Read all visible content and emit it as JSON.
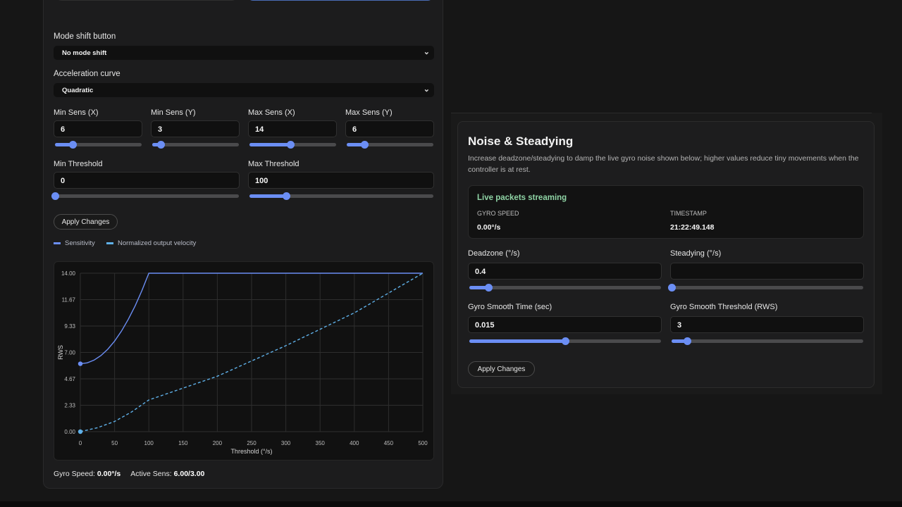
{
  "left_panel": {
    "mode_shift": {
      "label": "Mode shift button",
      "value": "No mode shift"
    },
    "accel_curve": {
      "label": "Acceleration curve",
      "value": "Quadratic"
    },
    "sens": [
      {
        "label": "Min Sens (X)",
        "value": "6"
      },
      {
        "label": "Min Sens (Y)",
        "value": "3"
      },
      {
        "label": "Max Sens (X)",
        "value": "14"
      },
      {
        "label": "Max Sens (Y)",
        "value": "6"
      }
    ],
    "thresholds": [
      {
        "label": "Min Threshold",
        "value": "0"
      },
      {
        "label": "Max Threshold",
        "value": "100"
      }
    ],
    "apply_label": "Apply Changes",
    "legend": [
      "Sensitivity",
      "Normalized output velocity"
    ],
    "status": {
      "gyro_label": "Gyro Speed:",
      "gyro_value": "0.00°/s",
      "sens_label": "Active Sens:",
      "sens_value": "6.00/3.00"
    }
  },
  "chart_data": {
    "type": "line",
    "xlabel": "Threshold (°/s)",
    "ylabel": "RWS",
    "xlim": [
      0,
      500
    ],
    "ylim": [
      0,
      14
    ],
    "x_ticks": [
      "0",
      "50",
      "100",
      "150",
      "200",
      "250",
      "300",
      "350",
      "400",
      "450",
      "500"
    ],
    "y_ticks": [
      "0.00",
      "2.33",
      "4.67",
      "7.00",
      "9.33",
      "11.67",
      "14.00"
    ],
    "grid": true,
    "legend_position": "top-left",
    "series": [
      {
        "name": "Sensitivity",
        "color": "#6b8ef4",
        "style": "solid",
        "points": [
          [
            0,
            6
          ],
          [
            10,
            6.08
          ],
          [
            20,
            6.32
          ],
          [
            30,
            6.72
          ],
          [
            40,
            7.28
          ],
          [
            50,
            8
          ],
          [
            60,
            8.88
          ],
          [
            70,
            9.92
          ],
          [
            80,
            11.12
          ],
          [
            90,
            12.48
          ],
          [
            100,
            14
          ],
          [
            500,
            14
          ]
        ]
      },
      {
        "name": "Normalized output velocity",
        "color": "#5fb0e8",
        "style": "dashed",
        "points": [
          [
            0,
            0
          ],
          [
            25,
            0.35
          ],
          [
            50,
            0.9
          ],
          [
            75,
            1.75
          ],
          [
            100,
            2.8
          ],
          [
            200,
            4.9
          ],
          [
            300,
            7.6
          ],
          [
            400,
            10.5
          ],
          [
            500,
            14
          ]
        ]
      }
    ]
  },
  "right_panel": {
    "title": "Noise & Steadying",
    "description": "Increase deadzone/steadying to damp the live gyro noise shown below; higher values reduce tiny movements when the controller is at rest.",
    "live": {
      "status": "Live packets streaming",
      "gyro_speed_label": "GYRO SPEED",
      "gyro_speed_value": "0.00°/s",
      "timestamp_label": "TIMESTAMP",
      "timestamp_value": "21:22:49.148"
    },
    "fields": [
      {
        "label": "Deadzone (°/s)",
        "value": "0.4"
      },
      {
        "label": "Steadying (°/s)",
        "value": ""
      },
      {
        "label": "Gyro Smooth Time (sec)",
        "value": "0.015"
      },
      {
        "label": "Gyro Smooth Threshold (RWS)",
        "value": "3"
      }
    ],
    "apply_label": "Apply Changes"
  },
  "sliders": {
    "min_sens_x": 0.2,
    "min_sens_y": 0.1,
    "max_sens_x": 0.47,
    "max_sens_y": 0.2,
    "min_threshold": 0.0,
    "max_threshold": 0.2,
    "deadzone": 0.1,
    "steadying": 0.0,
    "smooth_time": 0.5,
    "smooth_threshold": 0.08
  },
  "colors": {
    "accent": "#6b8ef4",
    "live_status": "#8fd4a5",
    "series2": "#5fb0e8"
  }
}
